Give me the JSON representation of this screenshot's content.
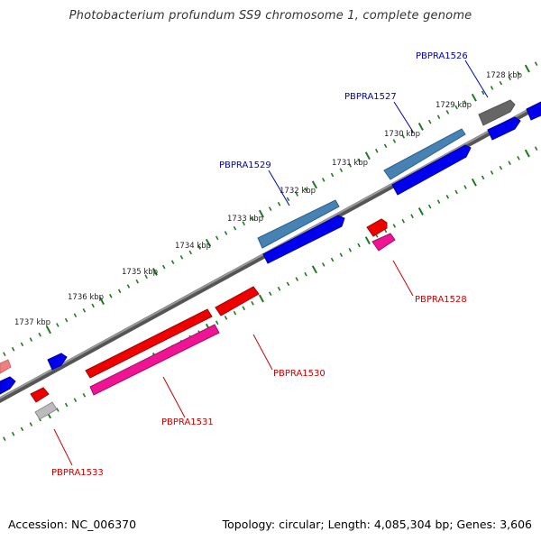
{
  "title": "Photobacterium profundum SS9 chromosome 1, complete genome",
  "accession": "Accession: NC_006370",
  "topology": "Topology: circular; Length: 4,085,304 bp; Genes: 3,606",
  "colors": {
    "backbone": "#777777",
    "tick": "#1f7a1f",
    "plus_gene": "#0000ee",
    "plus_gene_highlight": "#4682b4",
    "minus_gene": "#ee0000",
    "minus_gene_highlight": "#ee1493",
    "pseudo_gene": "#666666",
    "label_plus": "#0000bb",
    "label_minus": "#cc0000"
  },
  "scale_labels": [
    "1728 kbp",
    "1729 kbp",
    "1730 kbp",
    "1731 kbp",
    "1732 kbp",
    "1733 kbp",
    "1734 kbp",
    "1735 kbp",
    "1736 kbp",
    "1737 kbp"
  ],
  "gene_labels": [
    "PBPRA1526",
    "PBPRA1527",
    "PBPRA1529",
    "PBPRA1528",
    "PBPRA1530",
    "PBPRA1531",
    "PBPRA1533"
  ]
}
